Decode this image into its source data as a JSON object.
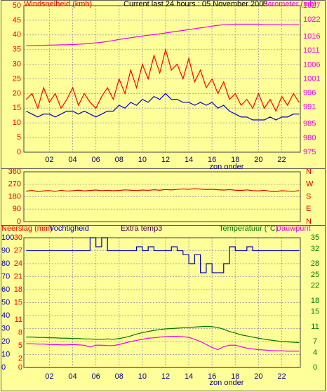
{
  "chart_data": [
    {
      "type": "line",
      "title": "Current last 24 hours : 05 November 2005",
      "ylabel": "Windsnelheid (kmh)",
      "y2label": "Barometer (mb)",
      "annotation": "zon onder",
      "x": [
        0,
        0.5,
        1,
        1.5,
        2,
        2.5,
        3,
        3.5,
        4,
        4.5,
        5,
        5.5,
        6,
        6.5,
        7,
        7.5,
        8,
        8.5,
        9,
        9.5,
        10,
        10.5,
        11,
        11.5,
        12,
        12.5,
        13,
        13.5,
        14,
        14.5,
        15,
        15.5,
        16,
        16.5,
        17,
        17.5,
        18,
        18.5,
        19,
        19.5,
        20,
        20.5,
        21,
        21.5,
        22,
        22.5,
        23,
        23.5
      ],
      "xlim": [
        -0.2,
        23.6
      ],
      "xticks": [
        {
          "value": 2,
          "label": "02"
        },
        {
          "value": 4,
          "label": "04"
        },
        {
          "value": 6,
          "label": "06"
        },
        {
          "value": 8,
          "label": "08"
        },
        {
          "value": 10,
          "label": "10"
        },
        {
          "value": 12,
          "label": "12"
        },
        {
          "value": 14,
          "label": "14"
        },
        {
          "value": 16,
          "label": "16"
        },
        {
          "value": 18,
          "label": "18"
        },
        {
          "value": 20,
          "label": "20"
        },
        {
          "value": 22,
          "label": "22"
        }
      ],
      "ylim": [
        0,
        50
      ],
      "yticks": [
        0,
        5,
        10,
        15,
        20,
        25,
        30,
        35,
        40,
        45,
        50
      ],
      "y2lim": [
        975,
        1027
      ],
      "y2ticks": [
        975,
        980,
        985,
        991,
        996,
        1001,
        1006,
        1011,
        1016,
        1022,
        1027
      ],
      "grid": true,
      "series": [
        {
          "color": "#ff0000",
          "axis": "y",
          "values": [
            18,
            20,
            15,
            22,
            17,
            20,
            15,
            18,
            22,
            16,
            20,
            17,
            15,
            19,
            22,
            18,
            25,
            20,
            28,
            22,
            30,
            25,
            33,
            27,
            35,
            28,
            30,
            25,
            32,
            24,
            28,
            22,
            25,
            20,
            24,
            18,
            20,
            16,
            18,
            15,
            20,
            15,
            18,
            14,
            19,
            16,
            20,
            17
          ]
        },
        {
          "color": "#0000cc",
          "axis": "y",
          "values": [
            14,
            13,
            12,
            13,
            13,
            12,
            13,
            14,
            14,
            13,
            14,
            13,
            12,
            13,
            14,
            14,
            16,
            15,
            17,
            16,
            18,
            17,
            19,
            18,
            20,
            18,
            18,
            17,
            17,
            16,
            17,
            16,
            17,
            15,
            16,
            14,
            13,
            12,
            12,
            11,
            11,
            11,
            12,
            11,
            12,
            12,
            13,
            13
          ]
        },
        {
          "color": "#ee00ee",
          "axis": "y2",
          "values": [
            1012.8,
            1012.8,
            1012.9,
            1012.9,
            1013,
            1013,
            1013.1,
            1013.1,
            1013.2,
            1013.3,
            1013.4,
            1013.6,
            1013.8,
            1014,
            1014.3,
            1014.6,
            1015,
            1015.3,
            1015.6,
            1015.9,
            1016.2,
            1016.5,
            1016.7,
            1017,
            1017.3,
            1017.6,
            1017.9,
            1018.2,
            1018.5,
            1018.8,
            1019.1,
            1019.4,
            1019.7,
            1020,
            1020.2,
            1020.3,
            1020.4,
            1020.4,
            1020.4,
            1020.4,
            1020.4,
            1020.3,
            1020.3,
            1020.3,
            1020.2,
            1020.2,
            1020.2,
            1020.2
          ]
        }
      ]
    },
    {
      "type": "line",
      "x": [
        0,
        0.5,
        1,
        1.5,
        2,
        2.5,
        3,
        3.5,
        4,
        4.5,
        5,
        5.5,
        6,
        6.5,
        7,
        7.5,
        8,
        8.5,
        9,
        9.5,
        10,
        10.5,
        11,
        11.5,
        12,
        12.5,
        13,
        13.5,
        14,
        14.5,
        15,
        15.5,
        16,
        16.5,
        17,
        17.5,
        18,
        18.5,
        19,
        19.5,
        20,
        20.5,
        21,
        21.5,
        22,
        22.5,
        23,
        23.5
      ],
      "xlim": [
        -0.2,
        23.6
      ],
      "ylim": [
        0,
        360
      ],
      "yticks": [
        0,
        90,
        180,
        270,
        360
      ],
      "y2lim": [
        0,
        360
      ],
      "y2ticks": [
        {
          "value": 0,
          "label": "N"
        },
        {
          "value": 90,
          "label": "E"
        },
        {
          "value": 180,
          "label": "S"
        },
        {
          "value": 270,
          "label": "W"
        },
        {
          "value": 360,
          "label": "N"
        }
      ],
      "grid": true,
      "series": [
        {
          "color": "#dd0000",
          "axis": "y",
          "values": [
            220,
            225,
            218,
            222,
            224,
            219,
            226,
            221,
            223,
            227,
            222,
            225,
            228,
            224,
            226,
            223,
            225,
            229,
            227,
            224,
            228,
            226,
            230,
            227,
            232,
            229,
            233,
            236,
            234,
            238,
            235,
            232,
            234,
            230,
            228,
            231,
            227,
            225,
            229,
            224,
            222,
            226,
            220,
            218,
            223,
            221,
            219,
            224
          ]
        }
      ]
    },
    {
      "type": "line",
      "extra_label": "Extra temp3",
      "annotation": "zon onder",
      "x": [
        0,
        0.5,
        1,
        1.5,
        2,
        2.5,
        3,
        3.5,
        4,
        4.5,
        5,
        5.5,
        6,
        6.5,
        7,
        7.5,
        8,
        8.5,
        9,
        9.5,
        10,
        10.5,
        11,
        11.5,
        12,
        12.5,
        13,
        13.5,
        14,
        14.5,
        15,
        15.5,
        16,
        16.5,
        17,
        17.5,
        18,
        18.5,
        19,
        19.5,
        20,
        20.5,
        21,
        21.5,
        22,
        22.5,
        23,
        23.5
      ],
      "xlim": [
        -0.2,
        23.6
      ],
      "xticks": [
        {
          "value": 2,
          "label": "02"
        },
        {
          "value": 4,
          "label": "04"
        },
        {
          "value": 6,
          "label": "06"
        },
        {
          "value": 8,
          "label": "08"
        },
        {
          "value": 10,
          "label": "10"
        },
        {
          "value": 12,
          "label": "12"
        },
        {
          "value": 14,
          "label": "14"
        },
        {
          "value": 16,
          "label": "16"
        },
        {
          "value": 18,
          "label": "18"
        },
        {
          "value": 20,
          "label": "20"
        },
        {
          "value": 22,
          "label": "22"
        }
      ],
      "ylim": [
        0,
        100
      ],
      "yticks": [
        0,
        10,
        20,
        30,
        40,
        50,
        60,
        70,
        80,
        90,
        100
      ],
      "y3lim": [
        0,
        30
      ],
      "y3ticks": [
        0,
        2,
        5,
        8,
        11,
        15,
        18,
        21,
        24,
        27,
        30
      ],
      "y2lim": [
        0,
        35
      ],
      "y2ticks": [
        0,
        4,
        7,
        11,
        15,
        18,
        22,
        25,
        28,
        32,
        35
      ],
      "grid": true,
      "series": [
        {
          "name": "Neerslag (mm)",
          "color": "#ff0000",
          "axis": "y3",
          "values": [
            0,
            0,
            0,
            0,
            0,
            0,
            0,
            0,
            0,
            0,
            0,
            0,
            0,
            0,
            0,
            0,
            0,
            0,
            0,
            0,
            0,
            0,
            0,
            0,
            0,
            0,
            0,
            0,
            0,
            0,
            0,
            0,
            0,
            0,
            0,
            0,
            0,
            0,
            0,
            0,
            0,
            0,
            0,
            0,
            0,
            0,
            0,
            0
          ]
        },
        {
          "name": "Vochtigheid",
          "color": "#0000bb",
          "axis": "y",
          "step": true,
          "values": [
            90,
            90,
            90,
            90,
            90,
            90,
            90,
            90,
            90,
            90,
            90,
            100,
            93,
            100,
            90,
            90,
            90,
            90,
            90,
            93,
            90,
            93,
            90,
            90,
            90,
            93,
            90,
            87,
            80,
            87,
            73,
            80,
            73,
            73,
            80,
            93,
            90,
            90,
            93,
            90,
            90,
            90,
            90,
            90,
            90,
            90,
            90,
            90
          ]
        },
        {
          "name": "Temperatuur (°C)",
          "color": "#007700",
          "axis": "y2",
          "values": [
            8.2,
            8.2,
            8.1,
            8.1,
            8,
            8,
            7.9,
            7.9,
            7.8,
            7.8,
            7.7,
            7.7,
            7.6,
            7.6,
            7.7,
            7.6,
            7.8,
            8.1,
            8.5,
            9,
            9.4,
            9.7,
            10,
            10.2,
            10.4,
            10.5,
            10.6,
            10.7,
            10.8,
            10.9,
            11,
            11.1,
            11,
            10.8,
            10.3,
            9.7,
            9.3,
            8.8,
            8.5,
            8.2,
            7.9,
            7.6,
            7.4,
            7.2,
            7,
            6.9,
            6.8,
            6.7
          ]
        },
        {
          "name": "Dauwpunt",
          "color": "#ee00ee",
          "axis": "y2",
          "values": [
            6.4,
            6.4,
            6.3,
            6.3,
            6.2,
            6.2,
            6.1,
            6.1,
            6.2,
            6.1,
            6,
            5.5,
            6,
            6,
            5.9,
            5.9,
            6.2,
            6.6,
            7,
            7.3,
            7.6,
            7.9,
            8,
            8.2,
            8.3,
            8.4,
            8.4,
            8.3,
            8.1,
            7.6,
            7,
            6.2,
            5.4,
            4.8,
            5.6,
            6,
            6,
            5.6,
            5.2,
            5,
            4.8,
            4.7,
            4.6,
            4.5,
            4.5,
            4.4,
            4.4,
            4.4
          ]
        }
      ]
    }
  ]
}
